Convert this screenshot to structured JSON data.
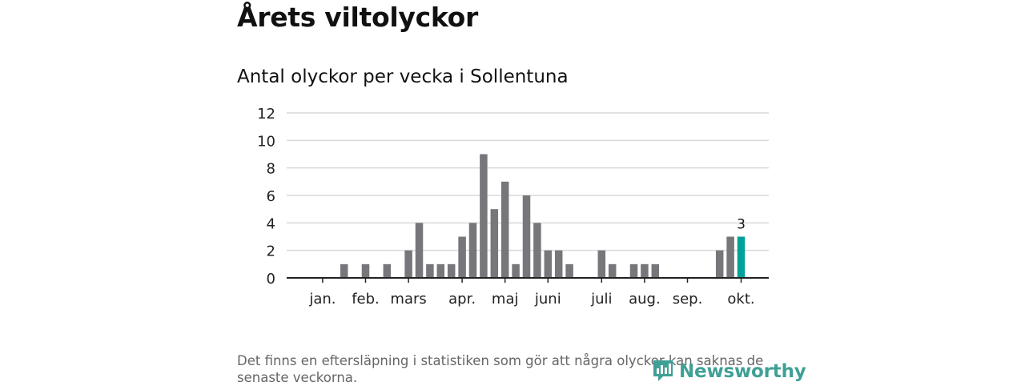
{
  "header": {
    "title": "Årets viltolyckor"
  },
  "chart_data": {
    "type": "bar",
    "title": "Antal olyckor per vecka i Sollentuna",
    "xlabel": "",
    "ylabel": "",
    "ylim": [
      0,
      12
    ],
    "yticks": [
      0,
      2,
      4,
      6,
      8,
      10,
      12
    ],
    "grid": true,
    "values": [
      0,
      0,
      0,
      1,
      0,
      1,
      0,
      1,
      0,
      2,
      4,
      1,
      1,
      1,
      3,
      4,
      9,
      5,
      7,
      1,
      6,
      4,
      2,
      2,
      1,
      0,
      0,
      2,
      1,
      0,
      1,
      1,
      1,
      0,
      0,
      0,
      0,
      0,
      2,
      3,
      3
    ],
    "month_labels": [
      {
        "label": "jan.",
        "week": 2
      },
      {
        "label": "feb.",
        "week": 6
      },
      {
        "label": "mars",
        "week": 10
      },
      {
        "label": "apr.",
        "week": 15
      },
      {
        "label": "maj",
        "week": 19
      },
      {
        "label": "juni",
        "week": 23
      },
      {
        "label": "juli",
        "week": 28
      },
      {
        "label": "aug.",
        "week": 32
      },
      {
        "label": "sep.",
        "week": 36
      },
      {
        "label": "okt.",
        "week": 41
      }
    ],
    "highlight_last": true,
    "data_labels": [
      {
        "week": 41,
        "value": "3"
      }
    ],
    "colors": {
      "bar": "#77767b",
      "highlight": "#00a19a",
      "grid": "#d9d9d9",
      "axis": "#222222"
    }
  },
  "footer": {
    "note": "Det finns en eftersläpning i statistiken som gör att några olyckor kan saknas de senaste veckorna.",
    "brand": "Newsworthy",
    "brand_icon": "newsworthy-logo-icon",
    "brand_color": "#3fa095"
  }
}
